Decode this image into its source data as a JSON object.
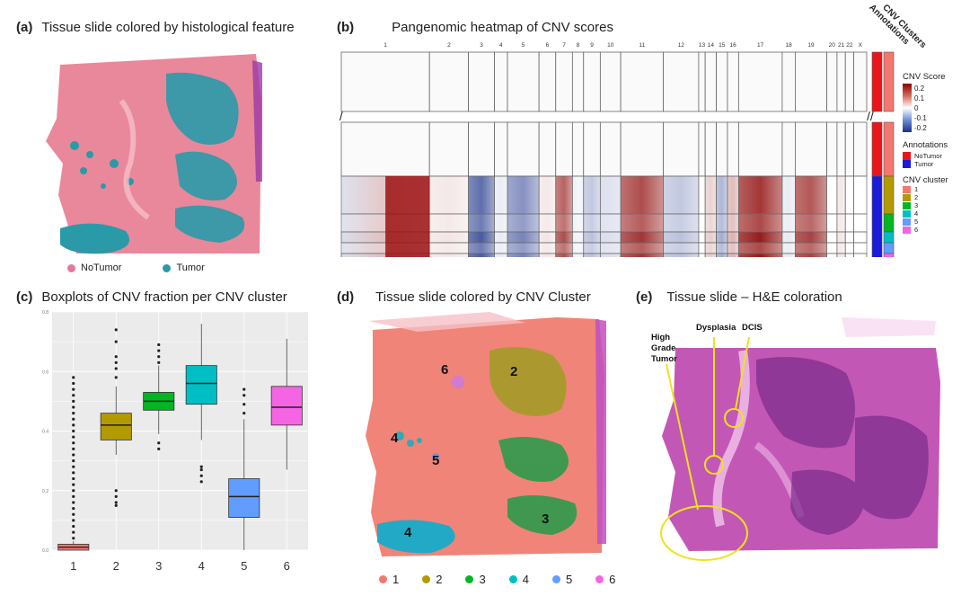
{
  "panels": {
    "a": {
      "letter": "(a)",
      "title": "Tissue slide colored by histological feature",
      "legend": [
        {
          "label": "NoTumor",
          "color": "#e8789a"
        },
        {
          "label": "Tumor",
          "color": "#2a9aa8"
        }
      ]
    },
    "b": {
      "letter": "(b)",
      "title": "Pangenomic heatmap of CNV scores",
      "chromosomes": [
        "1",
        "2",
        "3",
        "4",
        "5",
        "6",
        "7",
        "8",
        "9",
        "10",
        "11",
        "12",
        "13",
        "14",
        "15",
        "16",
        "17",
        "18",
        "19",
        "20",
        "21",
        "22",
        "X"
      ],
      "column_headers": [
        "Annotations",
        "CNV Clusters"
      ],
      "legend": {
        "score_title": "CNV Score",
        "score_ticks": [
          "0.2",
          "0.1",
          "0",
          "-0.1",
          "-0.2"
        ],
        "annotations_title": "Annotations",
        "annotations": [
          {
            "label": "NoTumor",
            "color": "#e8161b"
          },
          {
            "label": "Tumor",
            "color": "#1b1bd8"
          }
        ],
        "cluster_title": "CNV cluster",
        "clusters": [
          {
            "label": "1",
            "color": "#f4776d"
          },
          {
            "label": "2",
            "color": "#b39a00"
          },
          {
            "label": "3",
            "color": "#00b624"
          },
          {
            "label": "4",
            "color": "#00bfc4"
          },
          {
            "label": "5",
            "color": "#619cff"
          },
          {
            "label": "6",
            "color": "#f564e3"
          }
        ]
      }
    },
    "c": {
      "letter": "(c)",
      "title": "Boxplots of CNV fraction per CNV cluster"
    },
    "d": {
      "letter": "(d)",
      "title": "Tissue slide colored by CNV Cluster",
      "region_labels": [
        "2",
        "6",
        "4",
        "5",
        "3",
        "4"
      ],
      "legend": [
        {
          "label": "1",
          "color": "#f4776d"
        },
        {
          "label": "2",
          "color": "#b39a00"
        },
        {
          "label": "3",
          "color": "#00b624"
        },
        {
          "label": "4",
          "color": "#00bfc4"
        },
        {
          "label": "5",
          "color": "#619cff"
        },
        {
          "label": "6",
          "color": "#f564e3"
        }
      ]
    },
    "e": {
      "letter": "(e)",
      "title": "Tissue slide – H&E coloration",
      "annotations": [
        "Dysplasia",
        "DCIS",
        "High",
        "Grade",
        "Tumor"
      ]
    }
  },
  "chart_data": {
    "type": "box",
    "title": "Boxplots of CNV fraction per CNV cluster",
    "categories": [
      "1",
      "2",
      "3",
      "4",
      "5",
      "6"
    ],
    "colors": [
      "#f4776d",
      "#b39a00",
      "#00b624",
      "#00bfc4",
      "#619cff",
      "#f564e3"
    ],
    "ylim": [
      0.0,
      0.8
    ],
    "y_ticks": [
      "0.0",
      "0.2",
      "0.4",
      "0.6",
      "0.8"
    ],
    "boxes": [
      {
        "category": "1",
        "q1": 0.0,
        "median": 0.01,
        "q3": 0.02,
        "whisker_low": 0.0,
        "whisker_high": 0.03
      },
      {
        "category": "2",
        "q1": 0.37,
        "median": 0.42,
        "q3": 0.46,
        "whisker_low": 0.32,
        "whisker_high": 0.55
      },
      {
        "category": "3",
        "q1": 0.47,
        "median": 0.5,
        "q3": 0.53,
        "whisker_low": 0.39,
        "whisker_high": 0.62
      },
      {
        "category": "4",
        "q1": 0.49,
        "median": 0.56,
        "q3": 0.62,
        "whisker_low": 0.37,
        "whisker_high": 0.76
      },
      {
        "category": "5",
        "q1": 0.11,
        "median": 0.18,
        "q3": 0.24,
        "whisker_low": 0.0,
        "whisker_high": 0.44
      },
      {
        "category": "6",
        "q1": 0.42,
        "median": 0.48,
        "q3": 0.55,
        "whisker_low": 0.27,
        "whisker_high": 0.71
      }
    ],
    "outliers": [
      {
        "category": "1",
        "values": [
          0.04,
          0.06,
          0.08,
          0.1,
          0.12,
          0.14,
          0.16,
          0.18,
          0.2,
          0.22,
          0.24,
          0.26,
          0.28,
          0.3,
          0.32,
          0.34,
          0.36,
          0.38,
          0.4,
          0.42,
          0.44,
          0.46,
          0.48,
          0.5,
          0.52,
          0.54,
          0.56,
          0.58
        ]
      },
      {
        "category": "2",
        "values": [
          0.15,
          0.16,
          0.18,
          0.2,
          0.58,
          0.61,
          0.63,
          0.65,
          0.7,
          0.74
        ]
      },
      {
        "category": "3",
        "values": [
          0.34,
          0.36,
          0.63,
          0.65,
          0.67,
          0.69
        ]
      },
      {
        "category": "4",
        "values": [
          0.23,
          0.25,
          0.27,
          0.28
        ]
      },
      {
        "category": "5",
        "values": [
          0.46,
          0.49,
          0.52,
          0.54
        ]
      },
      {
        "category": "6",
        "values": []
      }
    ]
  }
}
